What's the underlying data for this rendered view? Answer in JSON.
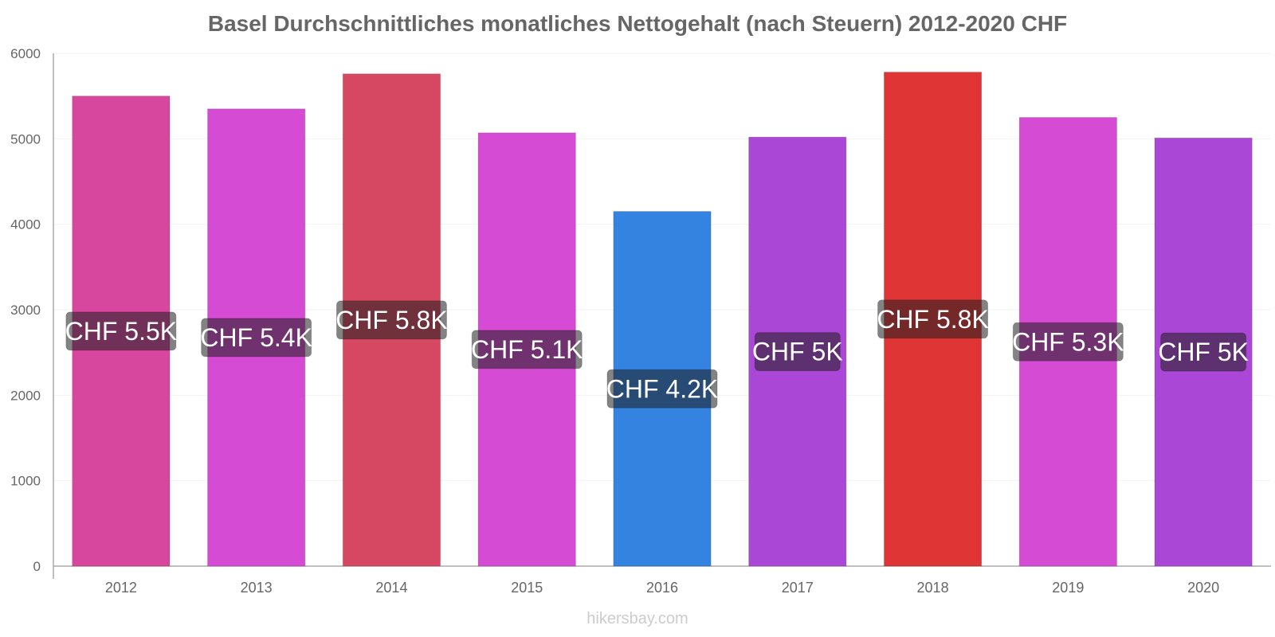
{
  "chart_data": {
    "type": "bar",
    "title": "Basel Durchschnittliches monatliches Nettogehalt (nach Steuern) 2012-2020 CHF",
    "categories": [
      "2012",
      "2013",
      "2014",
      "2015",
      "2016",
      "2017",
      "2018",
      "2019",
      "2020"
    ],
    "values": [
      5500,
      5350,
      5760,
      5070,
      4150,
      5020,
      5780,
      5250,
      5010
    ],
    "data_labels": [
      "CHF 5.5K",
      "CHF 5.4K",
      "CHF 5.8K",
      "CHF 5.1K",
      "CHF 4.2K",
      "CHF 5K",
      "CHF 5.8K",
      "CHF 5.3K",
      "CHF 5K"
    ],
    "colors": [
      "#d6479d",
      "#d64bd3",
      "#d64762",
      "#d64bd3",
      "#3583e0",
      "#ab47d6",
      "#e03535",
      "#d64bd3",
      "#ab47d6"
    ],
    "ylim": [
      0,
      6000
    ],
    "yticks": [
      0,
      1000,
      2000,
      3000,
      4000,
      5000,
      6000
    ],
    "xlabel": "",
    "ylabel": "",
    "grid": true,
    "legend": "none"
  },
  "watermark": "hikersbay.com"
}
